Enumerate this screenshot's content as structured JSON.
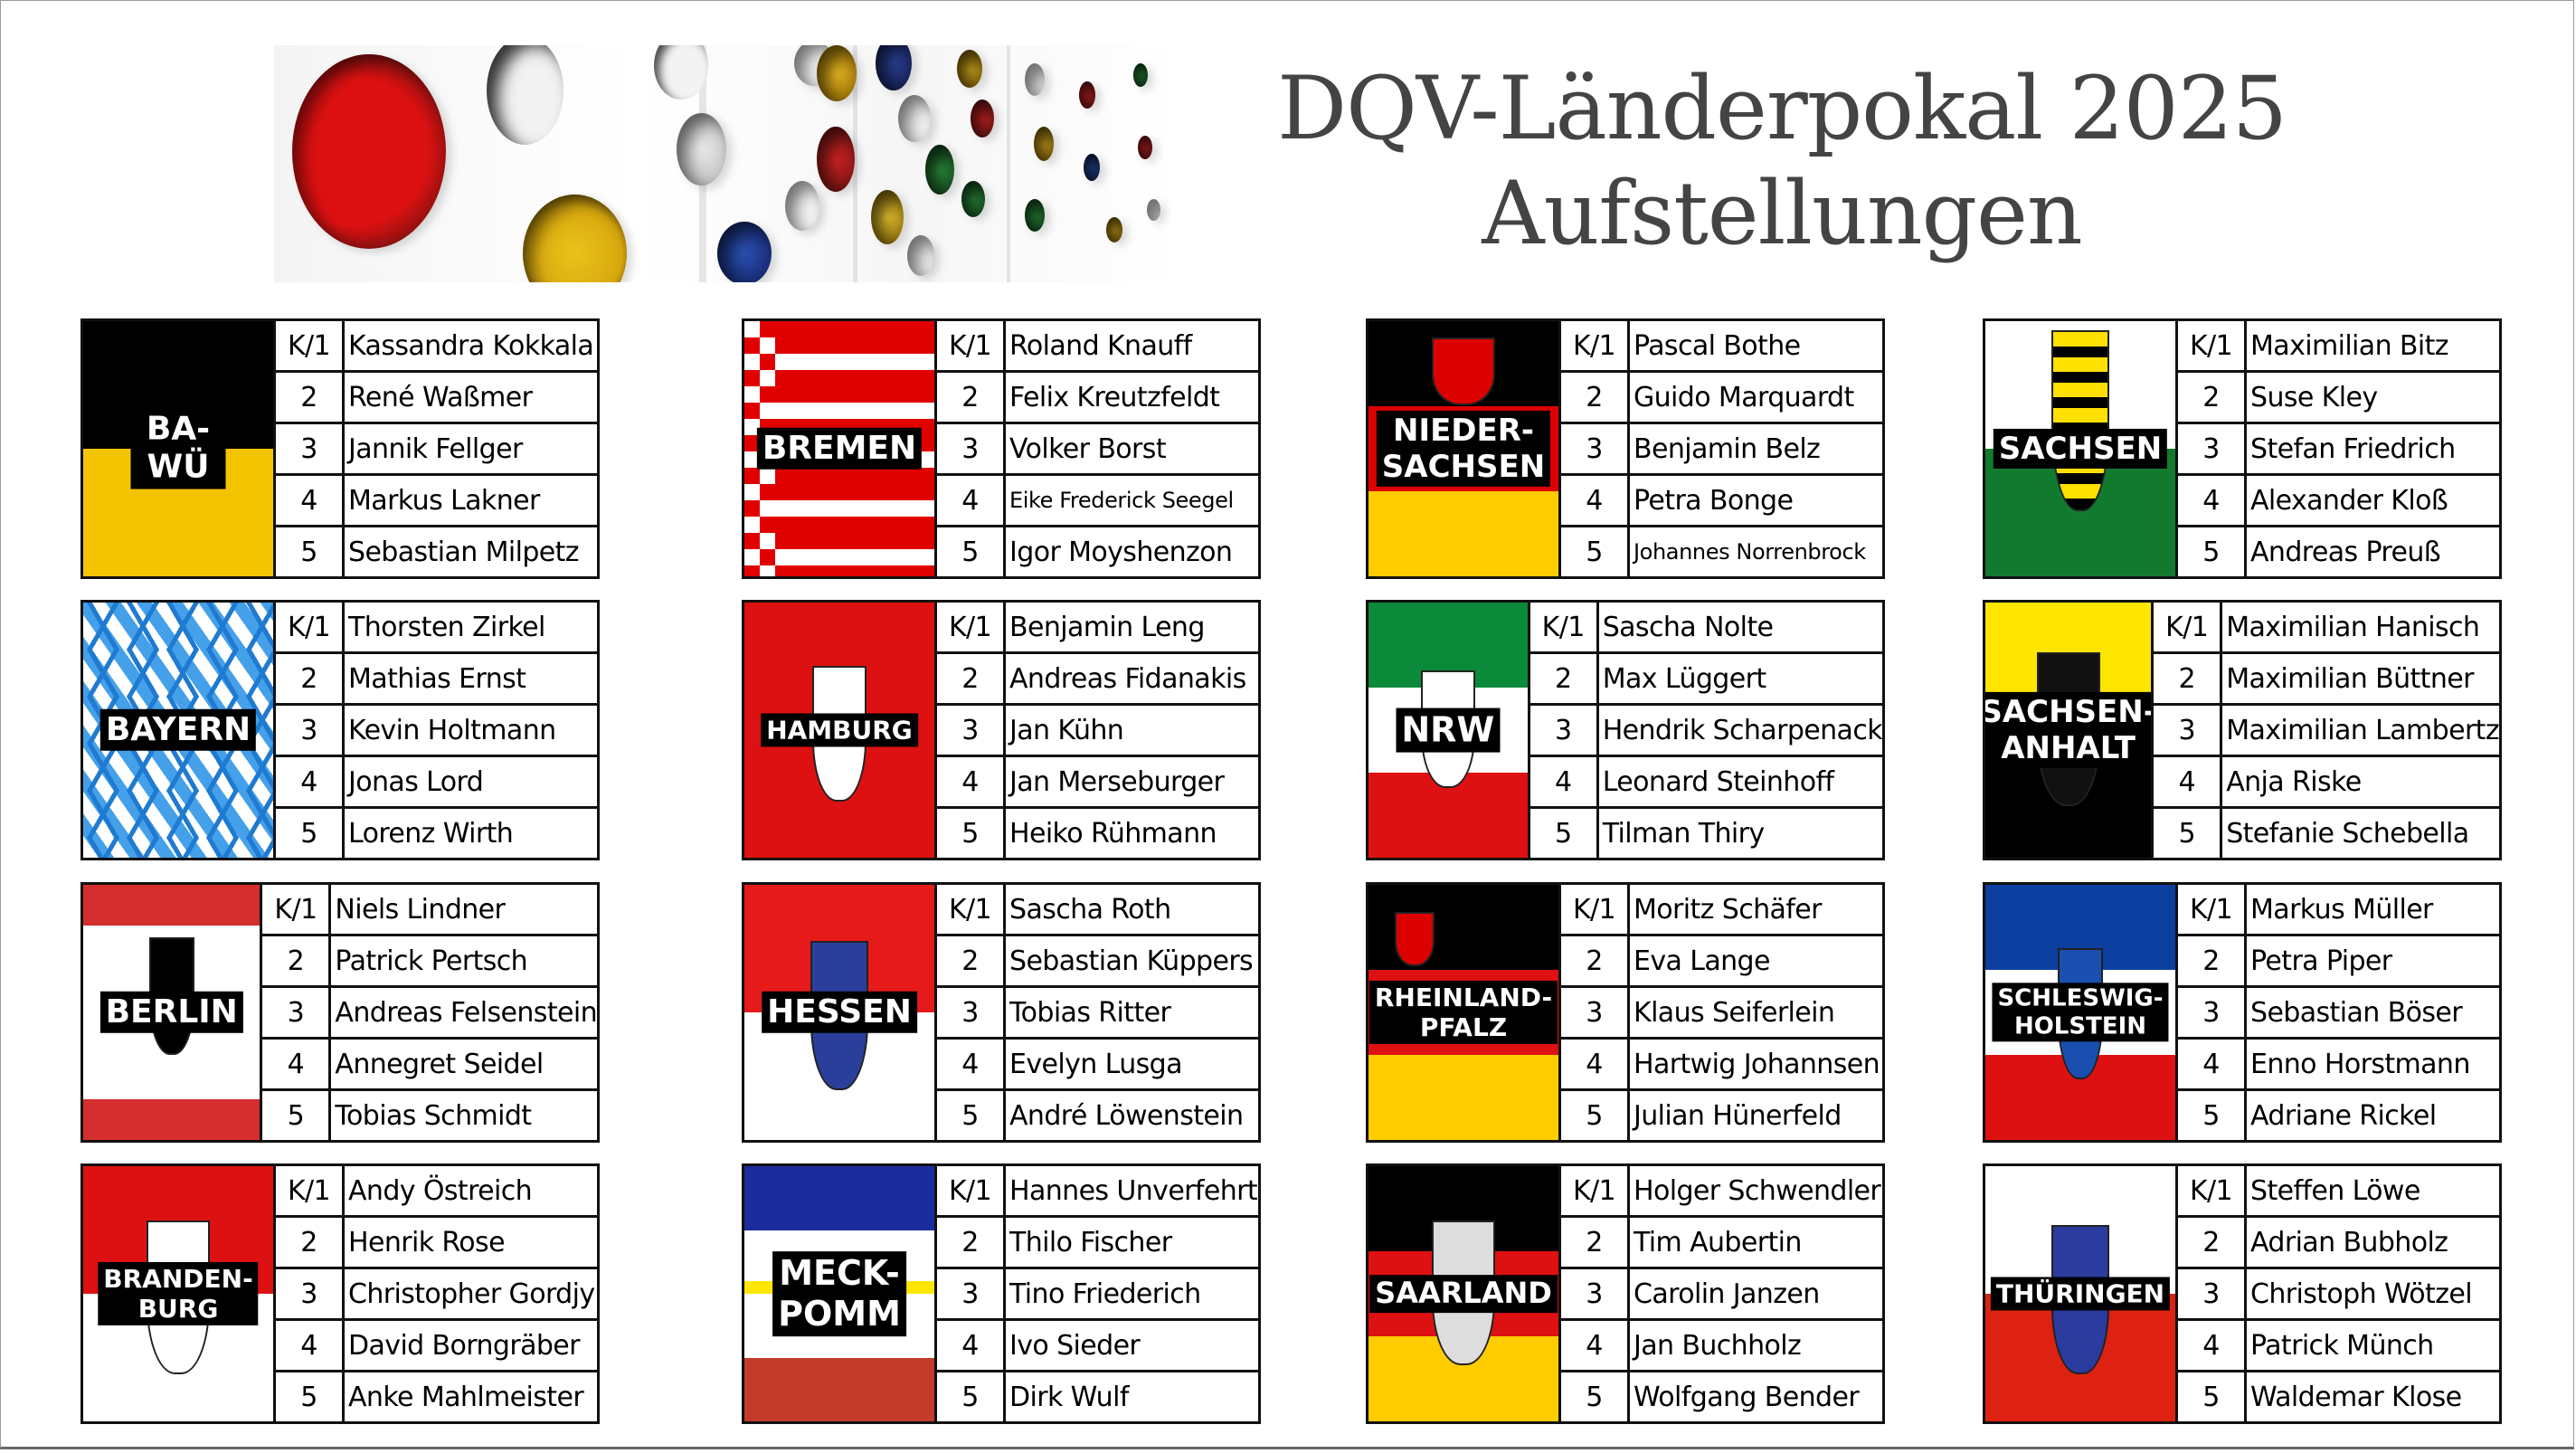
{
  "title": {
    "line1": "DQV-Länderpokal 2025",
    "line2": "Aufstellungen"
  },
  "teams": [
    {
      "flag_label": "BA-WÜ",
      "players": [
        "Kassandra Kokkala",
        "René Waßmer",
        "Jannik Fellger",
        "Markus Lakner",
        "Sebastian Milpetz"
      ]
    },
    {
      "flag_label": "BREMEN",
      "players": [
        "Roland Knauff",
        "Felix Kreutzfeldt",
        "Volker Borst",
        "Eike Frederick Seegel",
        "Igor Moyshenzon"
      ]
    },
    {
      "flag_label": "NIEDER-\nSACHSEN",
      "players": [
        "Pascal Bothe",
        "Guido Marquardt",
        "Benjamin Belz",
        "Petra Bonge",
        "Johannes Norrenbrock"
      ]
    },
    {
      "flag_label": "SACHSEN",
      "players": [
        "Maximilian Bitz",
        "Suse Kley",
        "Stefan Friedrich",
        "Alexander Kloß",
        "Andreas Preuß"
      ]
    },
    {
      "flag_label": "BAYERN",
      "players": [
        "Thorsten Zirkel",
        "Mathias Ernst",
        "Kevin Holtmann",
        "Jonas Lord",
        "Lorenz Wirth"
      ]
    },
    {
      "flag_label": "HAMBURG",
      "players": [
        "Benjamin Leng",
        "Andreas Fidanakis",
        "Jan Kühn",
        "Jan Merseburger",
        "Heiko Rühmann"
      ]
    },
    {
      "flag_label": "NRW",
      "players": [
        "Sascha Nolte",
        "Max Lüggert",
        "Hendrik Scharpenack",
        "Leonard Steinhoff",
        "Tilman Thiry"
      ]
    },
    {
      "flag_label": "SACHSEN-\nANHALT",
      "players": [
        "Maximilian Hanisch",
        "Maximilian Büttner",
        "Maximilian Lambertz",
        "Anja Riske",
        "Stefanie Schebella"
      ]
    },
    {
      "flag_label": "BERLIN",
      "players": [
        "Niels Lindner",
        "Patrick Pertsch",
        "Andreas Felsenstein",
        "Annegret Seidel",
        "Tobias Schmidt"
      ]
    },
    {
      "flag_label": "HESSEN",
      "players": [
        "Sascha Roth",
        "Sebastian Küppers",
        "Tobias Ritter",
        "Evelyn Lusga",
        "André Löwenstein"
      ]
    },
    {
      "flag_label": "RHEINLAND-\nPFALZ",
      "players": [
        "Moritz Schäfer",
        "Eva Lange",
        "Klaus Seiferlein",
        "Hartwig Johannsen",
        "Julian Hünerfeld"
      ]
    },
    {
      "flag_label": "SCHLESWIG-\nHOLSTEIN",
      "players": [
        "Markus Müller",
        "Petra Piper",
        "Sebastian Böser",
        "Enno Horstmann",
        "Adriane Rickel"
      ]
    },
    {
      "flag_label": "BRANDEN-\nBURG",
      "players": [
        "Andy Östreich",
        "Henrik Rose",
        "Christopher Gordjy",
        "David Borngräber",
        "Anke Mahlmeister"
      ]
    },
    {
      "flag_label": "MECK-\nPOMM",
      "players": [
        "Hannes Unverfehrt",
        "Thilo Fischer",
        "Tino Friederich",
        "Ivo Sieder",
        "Dirk Wulf"
      ]
    },
    {
      "flag_label": "SAARLAND",
      "players": [
        "Holger Schwendler",
        "Tim Aubertin",
        "Carolin Janzen",
        "Jan Buchholz",
        "Wolfgang Bender"
      ]
    },
    {
      "flag_label": "THÜRINGEN",
      "players": [
        "Steffen Löwe",
        "Adrian Bubholz",
        "Christoph Wötzel",
        "Patrick Münch",
        "Waldemar Klose"
      ]
    }
  ],
  "positions": [
    "K/1",
    "2",
    "3",
    "4",
    "5"
  ]
}
